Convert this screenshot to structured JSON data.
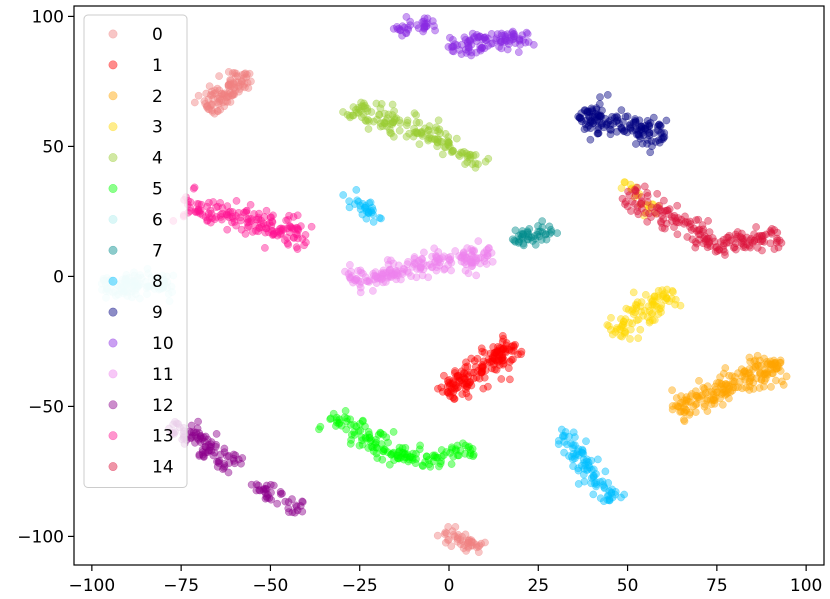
{
  "chart_data": {
    "type": "scatter",
    "title": "",
    "xlabel": "",
    "ylabel": "",
    "xlim": [
      -105,
      105
    ],
    "ylim": [
      -111,
      104
    ],
    "xticks": [
      -100,
      -75,
      -50,
      -25,
      0,
      25,
      50,
      75,
      100
    ],
    "yticks": [
      100,
      50,
      0,
      -50,
      -100
    ],
    "xtick_labels": [
      "−100",
      "−75",
      "−50",
      "−25",
      "0",
      "25",
      "50",
      "75",
      "100"
    ],
    "ytick_labels": [
      "100",
      "50",
      "0",
      "−50",
      "−100"
    ],
    "grid": false,
    "legend_position": "top-left",
    "series": [
      {
        "name": "0",
        "color": "#f08080",
        "clusters": [
          {
            "from": [
              -67,
              64
            ],
            "to": [
              -57,
              78
            ],
            "width": 5,
            "n": 100
          },
          {
            "from": [
              -1,
              -99
            ],
            "to": [
              9,
              -104
            ],
            "width": 3,
            "n": 45
          }
        ]
      },
      {
        "name": "1",
        "color": "#ff0000",
        "clusters": [
          {
            "from": [
              -1,
              -45
            ],
            "to": [
              18,
              -26
            ],
            "width": 5,
            "n": 160
          }
        ]
      },
      {
        "name": "2",
        "color": "#ffa500",
        "clusters": [
          {
            "from": [
              62,
              -52
            ],
            "to": [
              93,
              -34
            ],
            "width": 6,
            "n": 190
          }
        ]
      },
      {
        "name": "3",
        "color": "#ffd700",
        "clusters": [
          {
            "from": [
              46,
              -22
            ],
            "to": [
              63,
              -6
            ],
            "width": 5,
            "n": 90
          },
          {
            "from": [
              49,
              37
            ],
            "to": [
              57,
              25
            ],
            "width": 3,
            "n": 20
          }
        ]
      },
      {
        "name": "4",
        "color": "#9acd32",
        "clusters": [
          {
            "from": [
              -27,
              65
            ],
            "to": [
              -2,
              53
            ],
            "width": 5,
            "n": 110
          },
          {
            "from": [
              -2,
              52
            ],
            "to": [
              9,
              42
            ],
            "width": 3,
            "n": 40
          }
        ]
      },
      {
        "name": "5",
        "color": "#00ff00",
        "clusters": [
          {
            "from": [
              -33,
              -55
            ],
            "to": [
              -13,
              -70
            ],
            "width": 5,
            "n": 90
          },
          {
            "from": [
              -13,
              -70
            ],
            "to": [
              7,
              -68
            ],
            "width": 4,
            "n": 60
          }
        ]
      },
      {
        "name": "6",
        "color": "#afeeee",
        "clusters": [
          {
            "from": [
              -97,
              -4
            ],
            "to": [
              -78,
              -3
            ],
            "width": 5,
            "n": 100
          }
        ]
      },
      {
        "name": "7",
        "color": "#008b8b",
        "clusters": [
          {
            "from": [
              18,
              13
            ],
            "to": [
              29,
              18
            ],
            "width": 4,
            "n": 45
          }
        ]
      },
      {
        "name": "8",
        "color": "#00bfff",
        "clusters": [
          {
            "from": [
              -29,
              32
            ],
            "to": [
              -20,
              22
            ],
            "width": 3,
            "n": 30
          },
          {
            "from": [
              32,
              -60
            ],
            "to": [
              45,
              -86
            ],
            "width": 4,
            "n": 90
          }
        ]
      },
      {
        "name": "9",
        "color": "#000080",
        "clusters": [
          {
            "from": [
              37,
              62
            ],
            "to": [
              60,
              54
            ],
            "width": 6,
            "n": 150
          }
        ]
      },
      {
        "name": "10",
        "color": "#8a2be2",
        "clusters": [
          {
            "from": [
              -15,
              95
            ],
            "to": [
              -5,
              98
            ],
            "width": 3,
            "n": 35
          },
          {
            "from": [
              0,
              88
            ],
            "to": [
              22,
              92
            ],
            "width": 4,
            "n": 100
          }
        ]
      },
      {
        "name": "11",
        "color": "#ee82ee",
        "clusters": [
          {
            "from": [
              -27,
              -2
            ],
            "to": [
              12,
              10
            ],
            "width": 5,
            "n": 190
          }
        ]
      },
      {
        "name": "12",
        "color": "#8b008b",
        "clusters": [
          {
            "from": [
              -78,
              -57
            ],
            "to": [
              -60,
              -72
            ],
            "width": 5,
            "n": 90
          },
          {
            "from": [
              -55,
              -80
            ],
            "to": [
              -42,
              -90
            ],
            "width": 3,
            "n": 40
          }
        ]
      },
      {
        "name": "13",
        "color": "#ff1493",
        "clusters": [
          {
            "from": [
              -75,
              28
            ],
            "to": [
              -40,
              15
            ],
            "width": 6,
            "n": 160
          }
        ]
      },
      {
        "name": "14",
        "color": "#dc143c",
        "clusters": [
          {
            "from": [
              50,
              32
            ],
            "to": [
              75,
              12
            ],
            "width": 5,
            "n": 100
          },
          {
            "from": [
              73,
              13
            ],
            "to": [
              93,
              15
            ],
            "width": 5,
            "n": 80
          }
        ]
      }
    ]
  }
}
